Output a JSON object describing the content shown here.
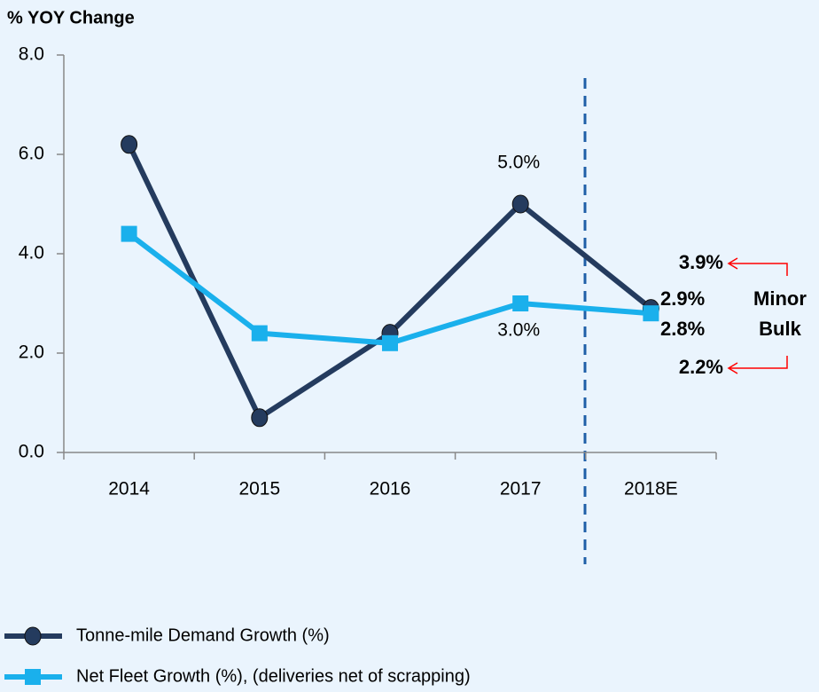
{
  "chart_data": {
    "type": "line",
    "title": "% YOY Change",
    "categories": [
      "2014",
      "2015",
      "2016",
      "2017",
      "2018E"
    ],
    "series": [
      {
        "name": "Tonne-mile Demand Growth (%)",
        "color": "#243b5e",
        "values": [
          6.2,
          0.7,
          2.4,
          5.0,
          2.9
        ],
        "value_labels": [
          null,
          null,
          null,
          "5.0%",
          "2.9%"
        ]
      },
      {
        "name": "Net Fleet Growth (%), (deliveries net of scrapping)",
        "color": "#1ab0ec",
        "values": [
          4.4,
          2.4,
          2.2,
          3.0,
          2.8
        ],
        "value_labels": [
          null,
          null,
          null,
          "3.0%",
          "2.8%"
        ]
      }
    ],
    "ylim": [
      0,
      8
    ],
    "yticks": [
      {
        "value": 0,
        "label": "0.0"
      },
      {
        "value": 2,
        "label": "2.0"
      },
      {
        "value": 4,
        "label": "4.0"
      },
      {
        "value": 6,
        "label": "6.0"
      },
      {
        "value": 8,
        "label": "8.0"
      }
    ],
    "annotations": [
      {
        "label": "3.9%",
        "value": 3.9,
        "color": "#ff0000"
      },
      {
        "label": "2.2%",
        "value": 2.2,
        "color": "#ff0000"
      }
    ],
    "bracket_label": [
      "Minor",
      "Bulk"
    ]
  }
}
